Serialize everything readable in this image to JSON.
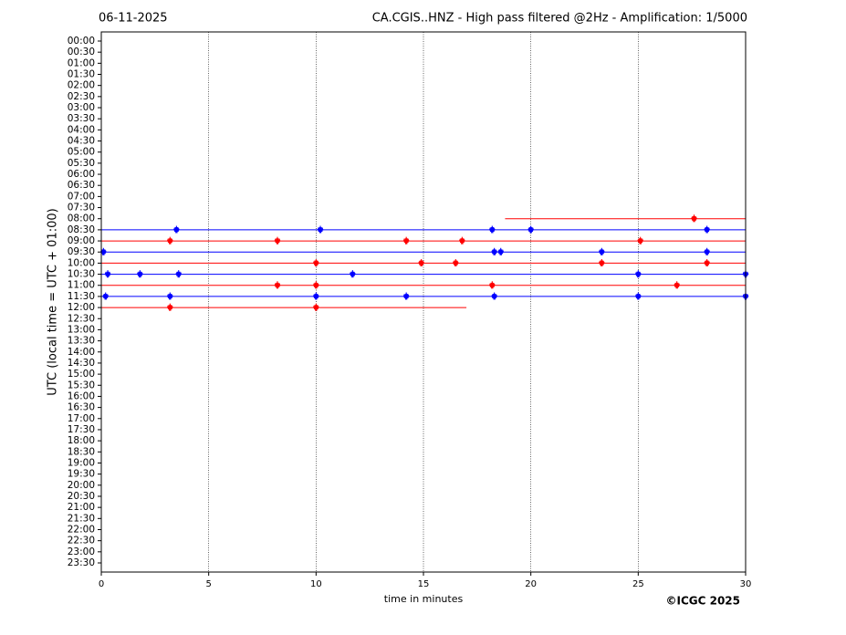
{
  "chart_data": {
    "type": "helicorder",
    "title": "CA.CGIS..HNZ - High pass filtered @2Hz - Amplification: 1/5000",
    "date": "06-11-2025",
    "y_label": "UTC (local time = UTC + 01:00)",
    "x_label": "time in minutes",
    "credit": "©ICGC 2025",
    "categories": [
      "00:00",
      "00:30",
      "01:00",
      "01:30",
      "02:00",
      "02:30",
      "03:00",
      "03:30",
      "04:00",
      "04:30",
      "05:00",
      "05:30",
      "06:00",
      "06:30",
      "07:00",
      "07:30",
      "08:00",
      "08:30",
      "09:00",
      "09:30",
      "10:00",
      "10:30",
      "11:00",
      "11:30",
      "12:00",
      "12:30",
      "13:00",
      "13:30",
      "14:00",
      "14:30",
      "15:00",
      "15:30",
      "16:00",
      "16:30",
      "17:00",
      "17:30",
      "18:00",
      "18:30",
      "19:00",
      "19:30",
      "20:00",
      "20:30",
      "21:00",
      "21:30",
      "22:00",
      "22:30",
      "23:00",
      "23:30"
    ],
    "xlim": [
      0,
      30
    ],
    "xticks": [
      0,
      5,
      10,
      15,
      20,
      25,
      30
    ],
    "grid": true,
    "traces": [
      null,
      null,
      null,
      null,
      null,
      null,
      null,
      null,
      null,
      null,
      null,
      null,
      null,
      null,
      null,
      null,
      {
        "color": "#ff0000",
        "x": [
          18.8,
          30
        ],
        "events": [
          27.6
        ]
      },
      {
        "color": "#0000ff",
        "x": [
          0,
          30
        ],
        "events": [
          3.5,
          10.2,
          18.2,
          20.0,
          28.2
        ]
      },
      {
        "color": "#ff0000",
        "x": [
          0,
          30
        ],
        "events": [
          3.2,
          8.2,
          14.2,
          16.8,
          25.1
        ]
      },
      {
        "color": "#0000ff",
        "x": [
          0,
          30
        ],
        "events": [
          0.1,
          18.3,
          18.6,
          23.3,
          28.2
        ]
      },
      {
        "color": "#ff0000",
        "x": [
          0,
          30
        ],
        "events": [
          10.0,
          14.9,
          16.5,
          23.3,
          28.2
        ]
      },
      {
        "color": "#0000ff",
        "x": [
          0,
          30
        ],
        "events": [
          0.3,
          1.8,
          3.6,
          11.7,
          25.0,
          30.0
        ]
      },
      {
        "color": "#ff0000",
        "x": [
          0,
          30
        ],
        "events": [
          8.2,
          10.0,
          18.2,
          26.8
        ]
      },
      {
        "color": "#0000ff",
        "x": [
          0,
          30
        ],
        "events": [
          0.2,
          3.2,
          10.0,
          14.2,
          18.3,
          25.0,
          30.0
        ]
      },
      {
        "color": "#ff0000",
        "x": [
          0,
          17
        ],
        "events": [
          3.2,
          10.0
        ]
      },
      null,
      null,
      null,
      null,
      null,
      null,
      null,
      null,
      null,
      null,
      null,
      null,
      null,
      null,
      null,
      null,
      null,
      null,
      null,
      null,
      null,
      null,
      null
    ]
  }
}
